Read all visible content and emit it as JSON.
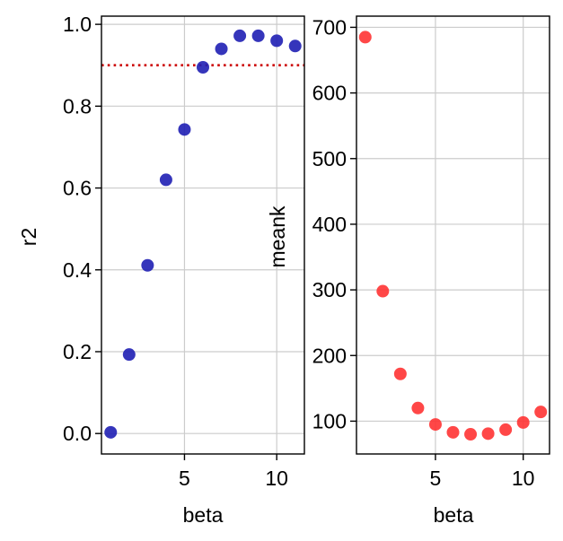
{
  "chart_data": [
    {
      "type": "scatter",
      "title": "",
      "xlabel": "beta",
      "ylabel": "r2",
      "xlim": [
        0.5,
        11.5
      ],
      "ylim": [
        -0.05,
        1.02
      ],
      "xticks": [
        5,
        10
      ],
      "yticks": [
        0.0,
        0.2,
        0.4,
        0.6,
        0.8,
        1.0
      ],
      "ytick_labels": [
        "0.0",
        "0.2",
        "0.4",
        "0.6",
        "0.8",
        "1.0"
      ],
      "grid": true,
      "reference_line": {
        "y": 0.9,
        "style": "dotted",
        "color": "#cc0000"
      },
      "series": [
        {
          "color": "#1f1fb4",
          "x": [
            1,
            2,
            3,
            4,
            5,
            6,
            7,
            8,
            9,
            10,
            11
          ],
          "y": [
            0.003,
            0.193,
            0.411,
            0.62,
            0.743,
            0.895,
            0.94,
            0.972,
            0.972,
            0.96,
            0.947
          ]
        }
      ]
    },
    {
      "type": "scatter",
      "title": "",
      "xlabel": "beta",
      "ylabel": "meank",
      "xlim": [
        0.5,
        11.5
      ],
      "ylim": [
        50,
        717
      ],
      "xticks": [
        5,
        10
      ],
      "yticks": [
        100,
        200,
        300,
        400,
        500,
        600,
        700
      ],
      "ytick_labels": [
        "100",
        "200",
        "300",
        "400",
        "500",
        "600",
        "700"
      ],
      "grid": true,
      "series": [
        {
          "color": "#ff3333",
          "x": [
            1,
            2,
            3,
            4,
            5,
            6,
            7,
            8,
            9,
            10,
            11
          ],
          "y": [
            685,
            298,
            172,
            120,
            95,
            83,
            80,
            81,
            87,
            98,
            114
          ]
        }
      ]
    }
  ]
}
